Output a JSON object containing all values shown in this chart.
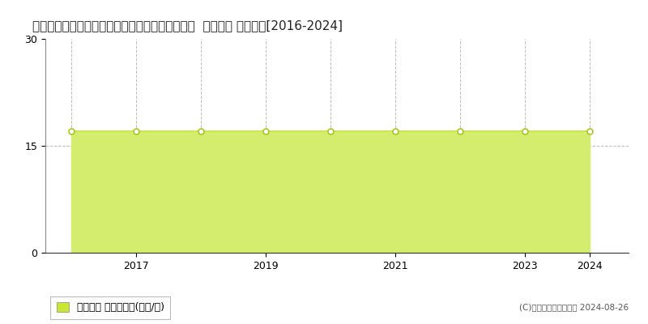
{
  "title": "愛知県丹羽郡扶桑町大字高雄字南羽根４３番１１  地価公示 地価推移[2016-2024]",
  "years": [
    2016,
    2017,
    2018,
    2019,
    2020,
    2021,
    2022,
    2023,
    2024
  ],
  "values": [
    17,
    17,
    17,
    17,
    17,
    17,
    17,
    17,
    17
  ],
  "line_color": "#c8e632",
  "fill_color": "#d4ed6e",
  "marker_color": "#ffffff",
  "marker_edge_color": "#a8c820",
  "ylim": [
    0,
    30
  ],
  "yticks": [
    0,
    15,
    30
  ],
  "xticks": [
    2017,
    2019,
    2021,
    2023,
    2024
  ],
  "grid_color": "#bbbbbb",
  "bg_color": "#ffffff",
  "legend_label": "地価公示 平均坪単価(万円/坪)",
  "legend_marker_color": "#c8e632",
  "copyright_text": "(C)土地価格ドットコム 2024-08-26",
  "title_fontsize": 11,
  "tick_fontsize": 9,
  "legend_fontsize": 9
}
